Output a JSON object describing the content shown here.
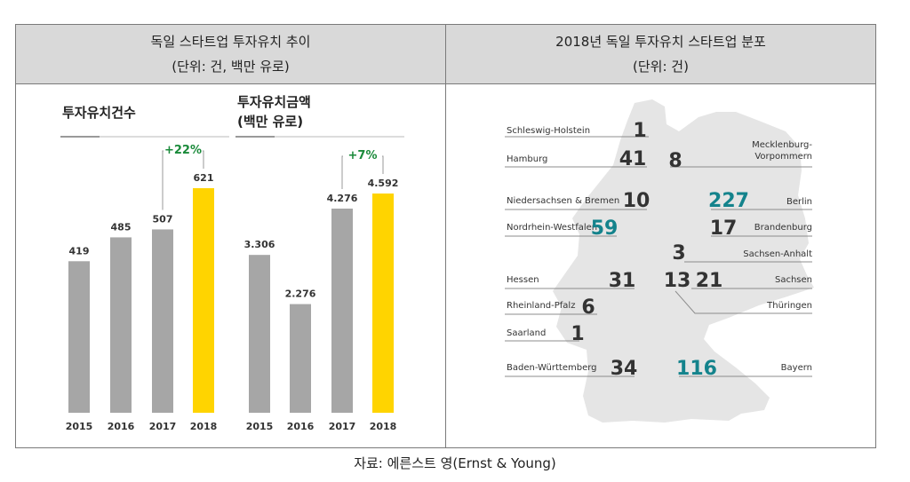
{
  "left_panel": {
    "title": "독일 스타트업 투자유치 추이",
    "unit": "(단위: 건, 백만 유로)"
  },
  "right_panel": {
    "title": "2018년 독일 투자유치 스타트업 분포",
    "unit": "(단위: 건)"
  },
  "source": "자료: 에른스트 영(Ernst & Young)",
  "colors": {
    "gray_bar": "#a6a6a6",
    "highlight_bar": "#ffd400",
    "growth_green": "#1a8a3a",
    "teal": "#14838c",
    "map": "#e5e5e5"
  },
  "chart_data": [
    {
      "type": "bar",
      "title": "투자유치건수",
      "categories": [
        "2015",
        "2016",
        "2017",
        "2018"
      ],
      "values": [
        419,
        485,
        507,
        621
      ],
      "value_labels": [
        "419",
        "485",
        "507",
        "621"
      ],
      "highlight": "2018",
      "annotation": {
        "text": "+22%",
        "from": "2017",
        "to": "2018"
      }
    },
    {
      "type": "bar",
      "title": "투자유치금액",
      "subtitle": "(백만 유로)",
      "categories": [
        "2015",
        "2016",
        "2017",
        "2018"
      ],
      "values": [
        3306,
        2276,
        4276,
        4592
      ],
      "value_labels": [
        "3.306",
        "2.276",
        "4.276",
        "4.592"
      ],
      "highlight": "2018",
      "annotation": {
        "text": "+7%",
        "from": "2017",
        "to": "2018"
      }
    }
  ],
  "map": {
    "states": [
      {
        "name": "Schleswig-Holstein",
        "value": "1",
        "teal": false
      },
      {
        "name": "Hamburg",
        "value": "41",
        "teal": false
      },
      {
        "name": "Mecklenburg-\nVorpommern",
        "value": "8",
        "teal": false
      },
      {
        "name": "Niedersachsen & Bremen",
        "value": "10",
        "teal": false
      },
      {
        "name": "Berlin",
        "value": "227",
        "teal": true
      },
      {
        "name": "Nordrhein-Westfalen",
        "value": "59",
        "teal": true
      },
      {
        "name": "Brandenburg",
        "value": "17",
        "teal": false
      },
      {
        "name": "Sachsen-Anhalt",
        "value": "3",
        "teal": false
      },
      {
        "name": "Hessen",
        "value": "31",
        "teal": false
      },
      {
        "name": "Sachsen",
        "value": "21",
        "teal": false
      },
      {
        "name": "Thüringen",
        "value": "13",
        "teal": false
      },
      {
        "name": "Rheinland-Pfalz",
        "value": "6",
        "teal": false
      },
      {
        "name": "Saarland",
        "value": "1",
        "teal": false
      },
      {
        "name": "Baden-Württemberg",
        "value": "34",
        "teal": false
      },
      {
        "name": "Bayern",
        "value": "116",
        "teal": true
      }
    ]
  }
}
